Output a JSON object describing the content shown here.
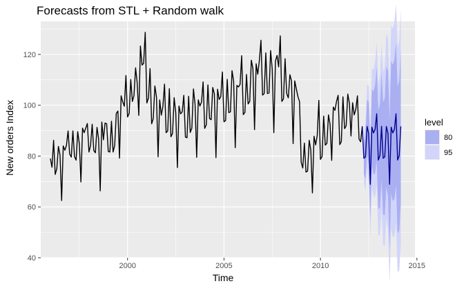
{
  "chart_data": {
    "type": "line",
    "title": "Forecasts from STL +  Random walk",
    "xlabel": "Time",
    "ylabel": "New orders Index",
    "xlim": [
      1995.5,
      2014.9
    ],
    "ylim": [
      40,
      133
    ],
    "xticks": [
      2000,
      2005,
      2010,
      2015
    ],
    "yticks": [
      40,
      60,
      80,
      100,
      120
    ],
    "grid": true,
    "legend_position": "right",
    "legend": {
      "title": "level",
      "entries": [
        {
          "label": "80",
          "color": "#aaaff2"
        },
        {
          "label": "95",
          "color": "#d2d5fa"
        }
      ]
    },
    "colors": {
      "series": "#000000",
      "forecast": "#00008b",
      "band80": "#aaaff2",
      "band95": "#d2d5fa",
      "panel": "#ebebeb",
      "grid": "#ffffff"
    },
    "series": [
      {
        "start": 1996.0,
        "frequency": 12,
        "values": [
          79.0,
          75.6,
          86.2,
          72.8,
          75.0,
          83.8,
          80.4,
          62.5,
          84.0,
          82.3,
          84.2,
          89.9,
          80.8,
          79.6,
          89.9,
          79.8,
          78.4,
          89.6,
          84.9,
          69.8,
          91.0,
          89.2,
          91.0,
          92.8,
          81.6,
          84.2,
          92.5,
          82.2,
          81.3,
          91.3,
          86.8,
          66.3,
          93.4,
          86.4,
          93.0,
          92.7,
          81.8,
          81.6,
          93.7,
          81.6,
          84.2,
          96.8,
          97.7,
          79.2,
          103.7,
          101.3,
          99.6,
          111.7,
          95.4,
          96.7,
          110.1,
          101.5,
          103.8,
          114.7,
          108.8,
          96.0,
          123.3,
          115.8,
          116.5,
          128.7,
          100.9,
          102.8,
          114.4,
          92.7,
          94.8,
          107.6,
          103.2,
          79.7,
          102.1,
          96.1,
          99.6,
          108.3,
          89.2,
          89.9,
          106.5,
          87.6,
          89.0,
          103.0,
          97.0,
          75.5,
          99.7,
          96.6,
          97.4,
          103.9,
          87.5,
          87.2,
          103.5,
          89.3,
          91.0,
          106.4,
          100.4,
          79.5,
          102.1,
          99.7,
          101.2,
          109.2,
          90.9,
          92.3,
          108.0,
          94.8,
          94.3,
          107.0,
          104.5,
          79.4,
          106.3,
          102.3,
          103.4,
          113.1,
          93.5,
          94.0,
          110.2,
          97.1,
          97.4,
          113.6,
          109.4,
          83.3,
          107.8,
          107.2,
          108.2,
          119.5,
          96.3,
          97.2,
          112.1,
          100.5,
          101.5,
          117.7,
          114.4,
          90.4,
          116.3,
          112.2,
          117.6,
          125.6,
          104.0,
          104.6,
          120.6,
          104.6,
          104.8,
          121.5,
          114.2,
          89.2,
          117.4,
          119.6,
          115.1,
          127.3,
          101.5,
          102.5,
          118.3,
          104.6,
          102.9,
          112.0,
          109.6,
          84.9,
          109.6,
          106.4,
          103.4,
          101.4,
          77.6,
          75.3,
          85.1,
          73.7,
          74.1,
          86.2,
          82.4,
          65.5,
          87.8,
          84.4,
          88.1,
          101.9,
          78.7,
          79.8,
          95.7,
          84.3,
          85.0,
          96.2,
          92.4,
          78.3,
          99.3,
          98.0,
          101.5,
          103.9,
          84.5,
          85.7,
          103.3,
          90.8,
          91.9,
          104.4,
          100.8,
          87.9,
          101.0,
          96.2,
          98.4,
          103.7,
          86.7,
          85.6,
          91.7
        ]
      },
      {
        "name": "forecast",
        "start": 1996.0,
        "frequency": 12,
        "values": [
          null
        ]
      }
    ]
  }
}
